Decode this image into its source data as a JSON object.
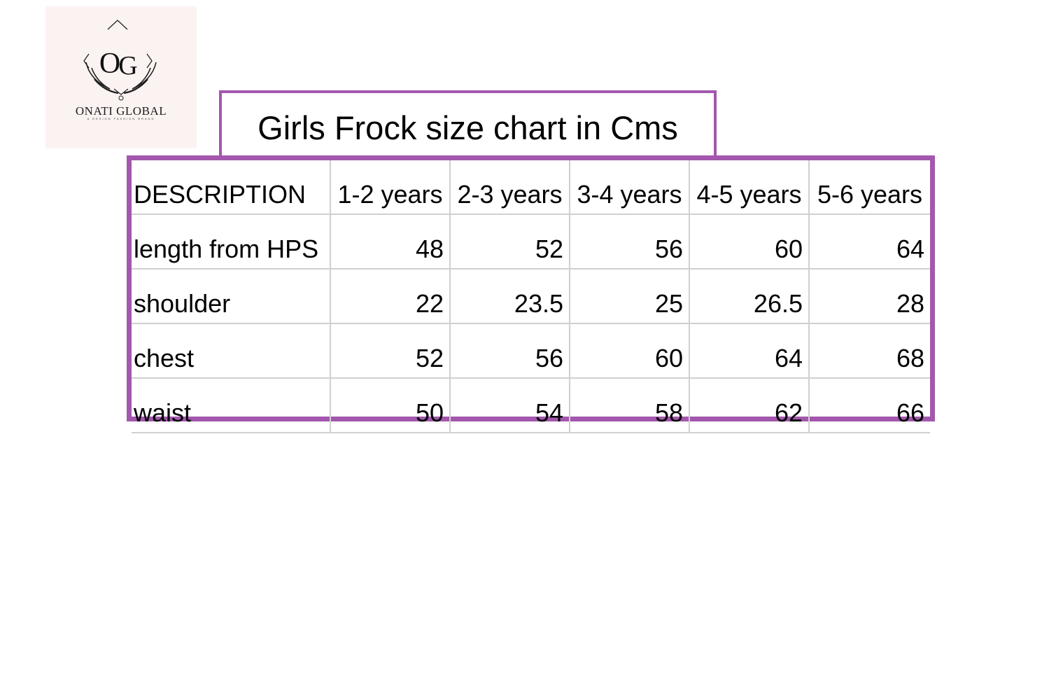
{
  "logo": {
    "brand_name": "ONATI GLOBAL",
    "monogram": "OG",
    "tagline": "A DESIGN FASHION BRAND"
  },
  "title": "Girls Frock size chart in Cms",
  "table": {
    "header": [
      "DESCRIPTION",
      "1-2 years",
      "2-3 years",
      "3-4 years",
      "4-5 years",
      "5-6 years"
    ],
    "rows": [
      {
        "label": "length from HPS",
        "values": [
          "48",
          "52",
          "56",
          "60",
          "64"
        ]
      },
      {
        "label": "shoulder",
        "values": [
          "22",
          "23.5",
          "25",
          "26.5",
          "28"
        ]
      },
      {
        "label": "chest",
        "values": [
          "52",
          "56",
          "60",
          "64",
          "68"
        ]
      },
      {
        "label": "waist",
        "values": [
          "50",
          "54",
          "58",
          "62",
          "66"
        ]
      }
    ]
  },
  "colors": {
    "frame": "#a357ad",
    "grid": "#d0d0d0",
    "logo_background": "#fbf3f2"
  }
}
